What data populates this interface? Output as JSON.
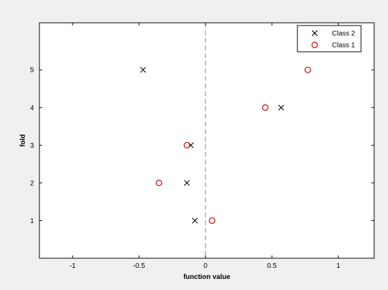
{
  "chart_data": {
    "type": "scatter",
    "title": "",
    "xlabel": "function value",
    "ylabel": "fold",
    "xlim": [
      -1.25,
      1.27
    ],
    "ylim": [
      0.0,
      6.25
    ],
    "xticks": [
      -1,
      -0.5,
      0,
      0.5,
      1
    ],
    "xtick_labels": [
      "-1",
      "-0.5",
      "0",
      "0.5",
      "1"
    ],
    "yticks": [
      1,
      2,
      3,
      4,
      5
    ],
    "ytick_labels": [
      "1",
      "2",
      "3",
      "4",
      "5"
    ],
    "grid": false,
    "legend_position": "top-right",
    "reference_line": {
      "x": 0,
      "style": "dashed",
      "color": "#a0a0a0"
    },
    "series": [
      {
        "name": "Class 2",
        "marker": "x",
        "color": "#000000",
        "points": [
          {
            "x": 0.57,
            "y": 4
          },
          {
            "x": -0.47,
            "y": 5
          },
          {
            "x": -0.11,
            "y": 3
          },
          {
            "x": -0.14,
            "y": 2
          },
          {
            "x": -0.08,
            "y": 1
          }
        ]
      },
      {
        "name": "Class 1",
        "marker": "o",
        "color": "#cc0000",
        "points": [
          {
            "x": 0.77,
            "y": 5
          },
          {
            "x": 0.45,
            "y": 4
          },
          {
            "x": -0.14,
            "y": 3
          },
          {
            "x": -0.35,
            "y": 2
          },
          {
            "x": 0.05,
            "y": 1
          }
        ]
      }
    ]
  }
}
